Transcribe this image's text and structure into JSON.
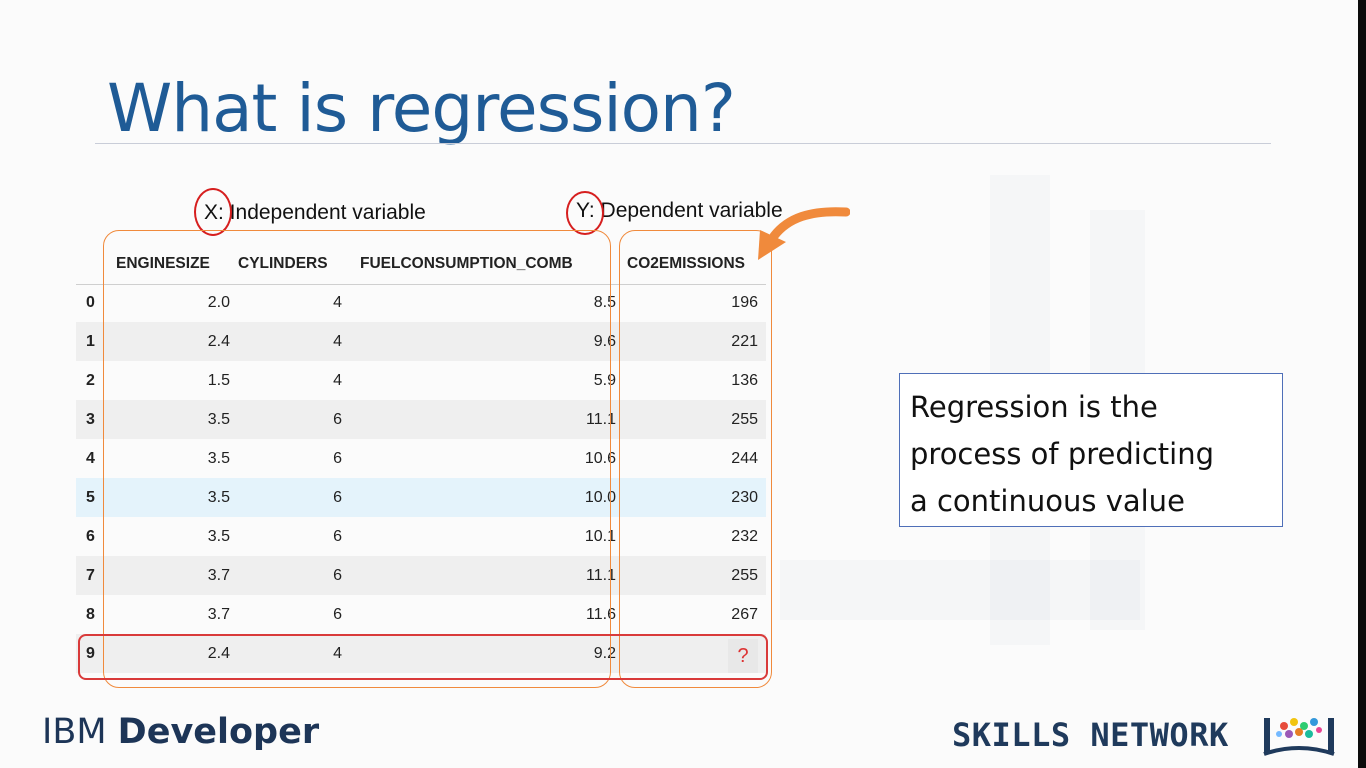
{
  "slide": {
    "title": "What is regression?"
  },
  "labels": {
    "x_prefix": "X:",
    "x_text": " Independent variable",
    "y_prefix": "Y:",
    "y_text": " Dependent variable"
  },
  "table": {
    "columns": [
      "",
      "ENGINESIZE",
      "CYLINDERS",
      "FUELCONSUMPTION_COMB",
      "CO2EMISSIONS"
    ],
    "rows": [
      [
        "0",
        "2.0",
        "4",
        "8.5",
        "196"
      ],
      [
        "1",
        "2.4",
        "4",
        "9.6",
        "221"
      ],
      [
        "2",
        "1.5",
        "4",
        "5.9",
        "136"
      ],
      [
        "3",
        "3.5",
        "6",
        "11.1",
        "255"
      ],
      [
        "4",
        "3.5",
        "6",
        "10.6",
        "244"
      ],
      [
        "5",
        "3.5",
        "6",
        "10.0",
        "230"
      ],
      [
        "6",
        "3.5",
        "6",
        "10.1",
        "232"
      ],
      [
        "7",
        "3.7",
        "6",
        "11.1",
        "255"
      ],
      [
        "8",
        "3.7",
        "6",
        "11.6",
        "267"
      ],
      [
        "9",
        "2.4",
        "4",
        "9.2",
        ""
      ]
    ],
    "unknown_value": "?"
  },
  "definition": {
    "line1": "Regression is the",
    "line2": "process of predicting",
    "line3": "a continuous value"
  },
  "footer": {
    "ibm_light": "IBM ",
    "ibm_bold": "Developer",
    "skills": "SKILLS NETWORK"
  },
  "colors": {
    "title": "#1f5b96",
    "orange_box": "#f08a3c",
    "red_circle": "#d61f1f",
    "highlight_row": "#e4f3fb"
  }
}
